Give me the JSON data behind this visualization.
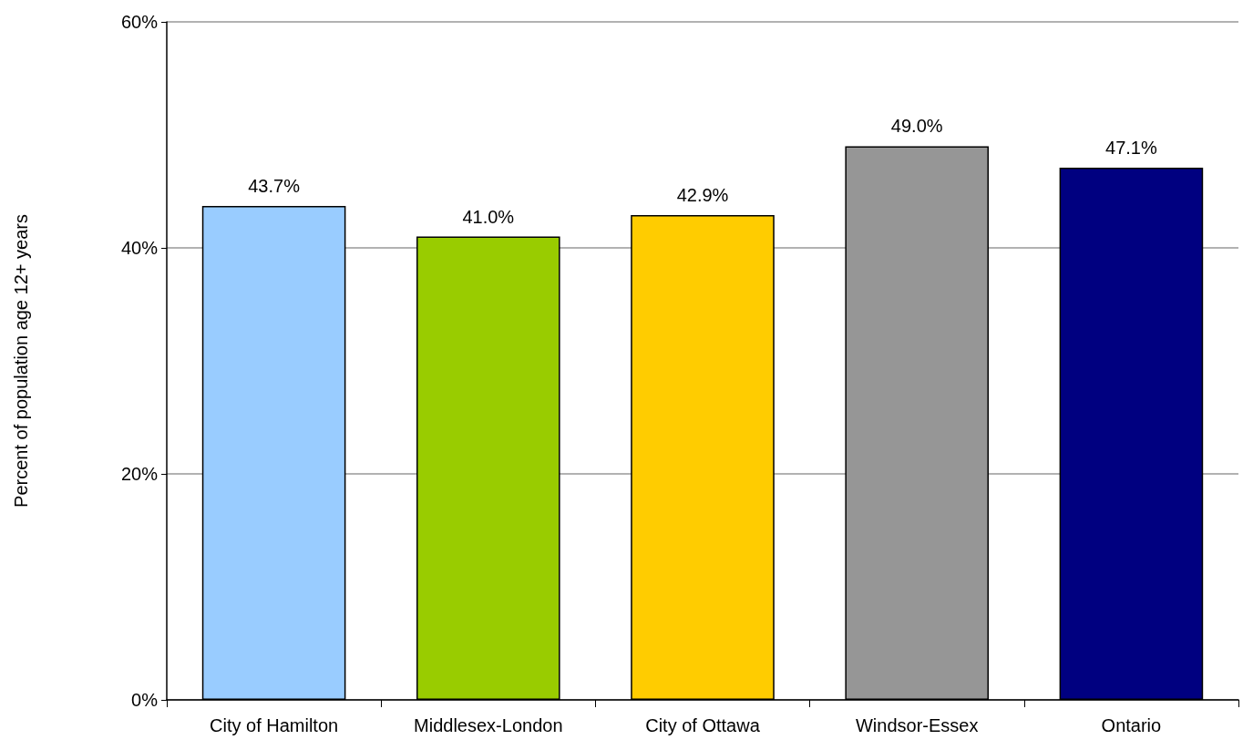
{
  "chart_data": {
    "type": "bar",
    "ylabel": "Percent of population age 12+ years",
    "categories": [
      "City of Hamilton",
      "Middlesex-London",
      "City of Ottawa",
      "Windsor-Essex",
      "Ontario"
    ],
    "values": [
      43.7,
      41.0,
      42.9,
      49.0,
      47.1
    ],
    "colors": [
      "#99ccff",
      "#99cc00",
      "#ffcc00",
      "#969696",
      "#000080"
    ],
    "value_labels": [
      "43.7%",
      "41.0%",
      "42.9%",
      "49.0%",
      "47.1%"
    ],
    "ylim": [
      0,
      60
    ],
    "yticks": [
      {
        "value": 0,
        "label": "0%"
      },
      {
        "value": 20,
        "label": "20%"
      },
      {
        "value": 40,
        "label": "40%"
      },
      {
        "value": 60,
        "label": "60%"
      }
    ],
    "grid": "y"
  }
}
